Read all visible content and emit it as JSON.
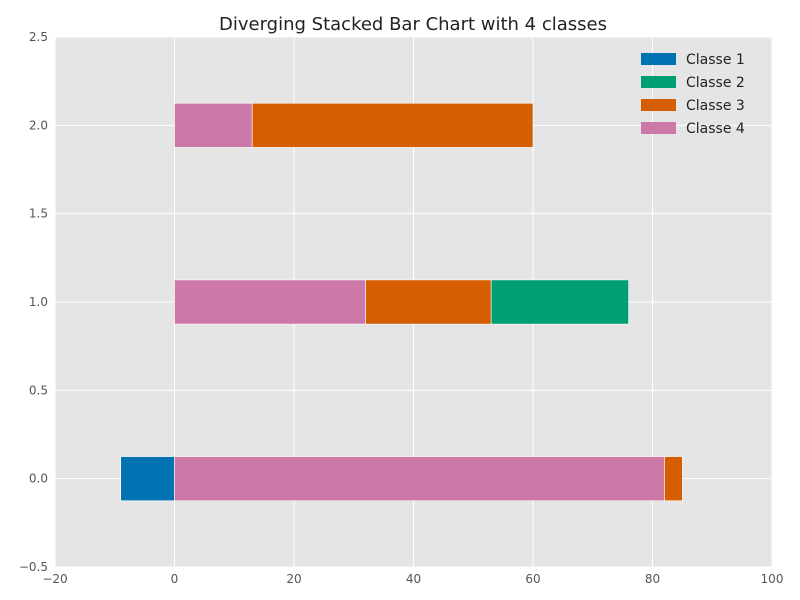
{
  "chart_data": {
    "type": "bar",
    "orientation": "horizontal",
    "stacked": true,
    "diverging": true,
    "title": "Diverging Stacked Bar Chart with 4 classes",
    "xlim": [
      -20,
      100
    ],
    "ylim": [
      -0.5,
      2.5
    ],
    "x_ticks": [
      "−20",
      "0",
      "20",
      "40",
      "60",
      "80",
      "100"
    ],
    "y_ticks": [
      "−0.5",
      "0.0",
      "0.5",
      "1.0",
      "1.5",
      "2.0",
      "2.5"
    ],
    "grid": true,
    "legend_position": "top-right",
    "categories": [
      0,
      1,
      2
    ],
    "series": [
      {
        "name": "Classe 1",
        "color": "#0072b2",
        "values": [
          -9,
          0,
          0
        ]
      },
      {
        "name": "Classe 2",
        "color": "#009e73",
        "values": [
          0,
          23,
          0
        ]
      },
      {
        "name": "Classe 3",
        "color": "#d55e00",
        "values": [
          3,
          21,
          47
        ]
      },
      {
        "name": "Classe 4",
        "color": "#cc79a7",
        "values": [
          82,
          32,
          13
        ]
      }
    ],
    "stack_order": [
      [
        "Classe 1",
        "Classe 4",
        "Classe 3"
      ],
      [
        "Classe 4",
        "Classe 3",
        "Classe 2"
      ],
      [
        "Classe 4",
        "Classe 3"
      ]
    ]
  }
}
